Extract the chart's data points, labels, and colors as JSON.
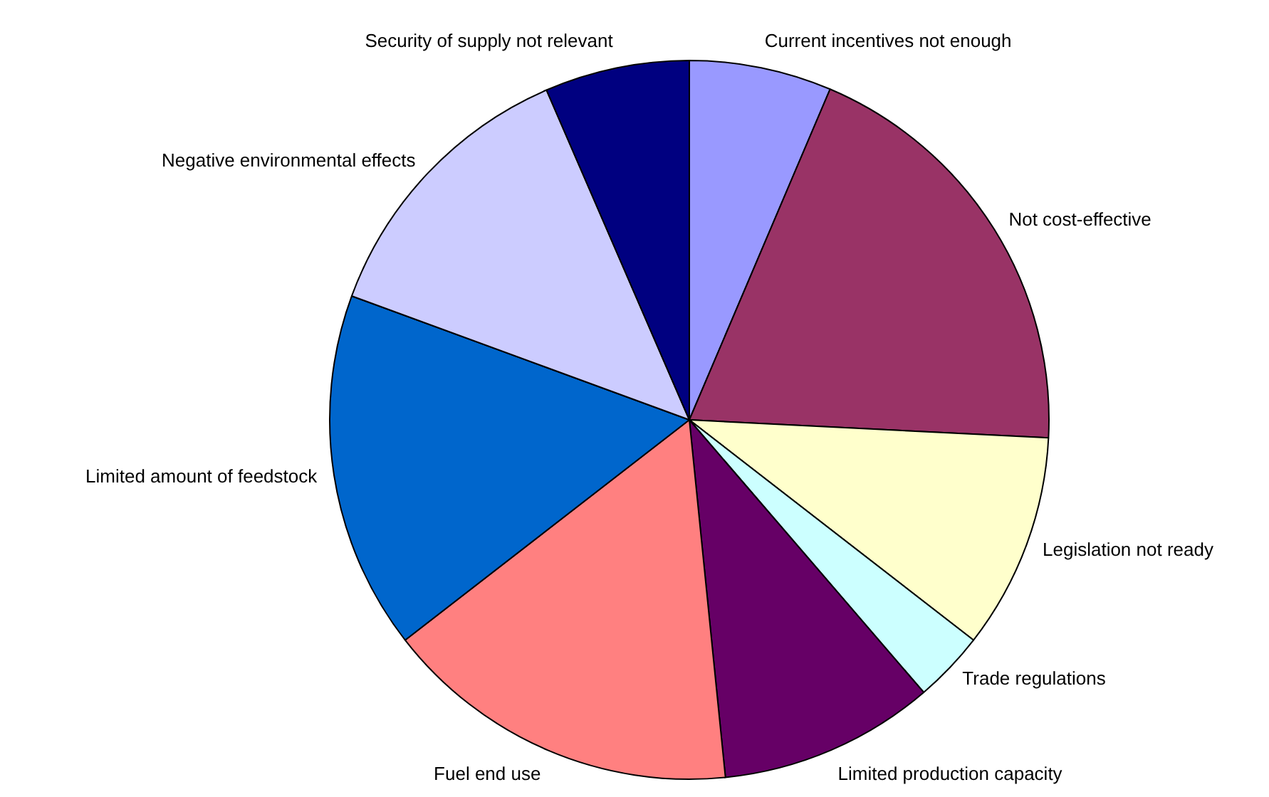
{
  "chart_data": {
    "type": "pie",
    "categories": [
      "Current incentives not enough",
      "Not cost-effective",
      "Legislation not ready",
      "Trade regulations",
      "Limited production capacity",
      "Fuel end use",
      "Limited amount of feedstock",
      "Negative environmental effects",
      "Security of supply not relevant"
    ],
    "values": [
      6.4,
      19.4,
      9.7,
      3.2,
      9.7,
      16.1,
      16.1,
      12.9,
      6.5
    ],
    "colors": [
      "#9999ff",
      "#993366",
      "#ffffcc",
      "#ccffff",
      "#660066",
      "#ff8080",
      "#0066cc",
      "#ccccff",
      "#000080"
    ],
    "legend": false
  }
}
